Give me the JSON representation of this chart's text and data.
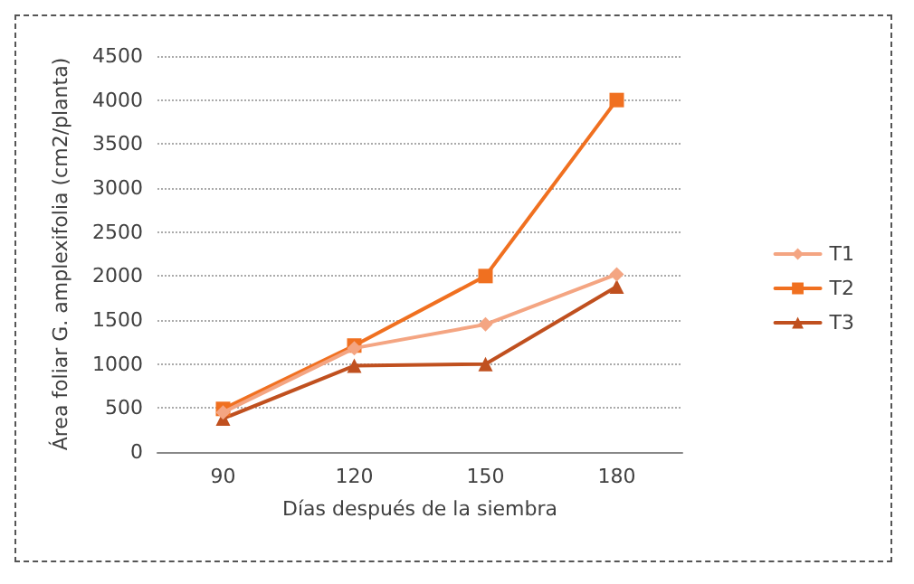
{
  "chart_data": {
    "type": "line",
    "xlabel": "Días después de la siembra",
    "ylabel": "Área foliar G. amplexifolia (cm2/planta)",
    "categories": [
      "90",
      "120",
      "150",
      "180"
    ],
    "series": [
      {
        "name": "T1",
        "color": "#f4a582",
        "marker": "diamond",
        "values": [
          450,
          1180,
          1450,
          2020
        ]
      },
      {
        "name": "T2",
        "color": "#f07020",
        "marker": "square",
        "values": [
          490,
          1210,
          2000,
          4000
        ]
      },
      {
        "name": "T3",
        "color": "#c0501f",
        "marker": "triangle",
        "values": [
          380,
          980,
          1000,
          1880
        ]
      }
    ],
    "ylim": [
      0,
      4500
    ],
    "yticks": [
      0,
      500,
      1000,
      1500,
      2000,
      2500,
      3000,
      3500,
      4000,
      4500
    ],
    "grid": "y",
    "legend": "right",
    "line_style": "solid"
  }
}
